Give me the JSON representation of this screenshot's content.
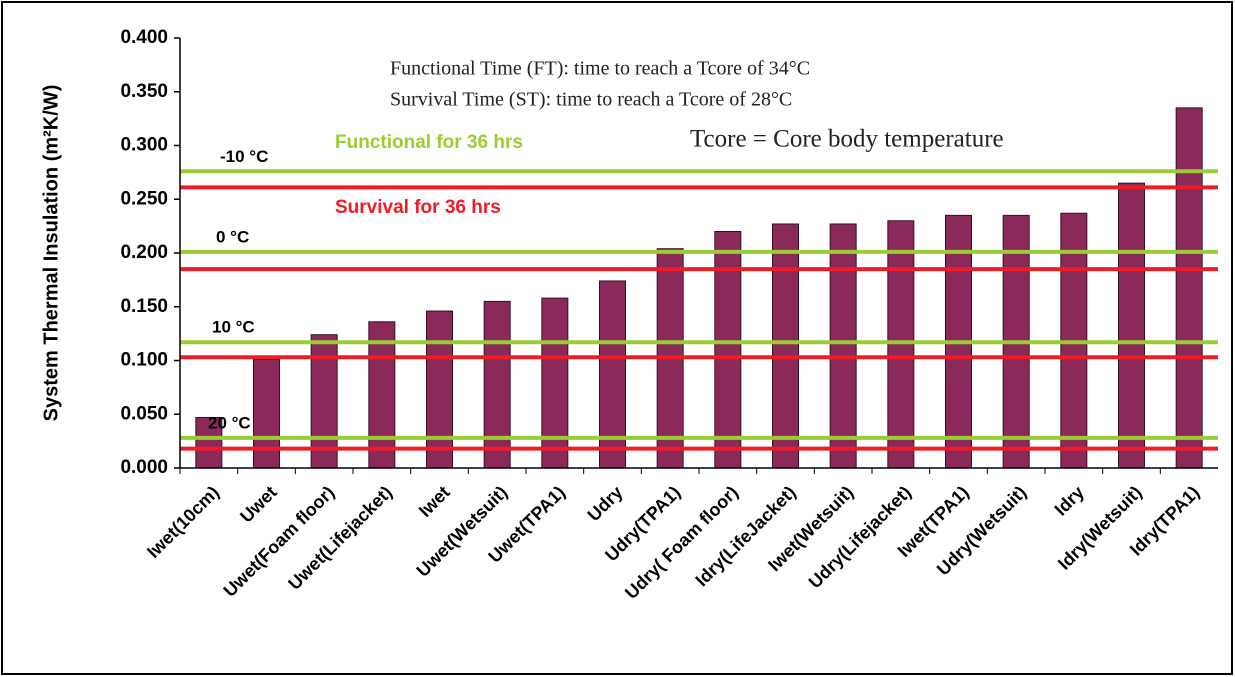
{
  "chart_data": {
    "type": "bar",
    "y_label": "System Thermal Insulation (m²K/W)",
    "categories": [
      "Iwet(10cm)",
      "Uwet",
      "Uwet(Foam floor)",
      "Uwet(Lifejacket)",
      "Iwet",
      "Uwet(Wetsuit)",
      "Uwet(TPA1)",
      "Udry",
      "Udry(TPA1)",
      "Udry( Foam floor)",
      "Idry(LifeJacket)",
      "Iwet(Wetsuit)",
      "Udry(Lifejacket)",
      "Iwet(TPA1)",
      "Udry(Wetsuit)",
      "Idry",
      "Idry(Wetsuit)",
      "Idry(TPA1)"
    ],
    "values": [
      0.047,
      0.101,
      0.124,
      0.136,
      0.146,
      0.155,
      0.158,
      0.174,
      0.204,
      0.22,
      0.227,
      0.227,
      0.23,
      0.235,
      0.235,
      0.237,
      0.265,
      0.335
    ],
    "color": "#8b2a5a",
    "ylim": [
      0,
      0.4
    ],
    "yticks": [
      {
        "value": 0,
        "label": "0.000"
      },
      {
        "value": 0.05,
        "label": "0.050"
      },
      {
        "value": 0.1,
        "label": "0.100"
      },
      {
        "value": 0.15,
        "label": "0.150"
      },
      {
        "value": 0.2,
        "label": "0.200"
      },
      {
        "value": 0.25,
        "label": "0.250"
      },
      {
        "value": 0.3,
        "label": "0.300"
      },
      {
        "value": 0.35,
        "label": "0.350"
      },
      {
        "value": 0.4,
        "label": "0.400"
      }
    ],
    "functional_label": "Functional for 36 hrs",
    "functional_color": "#9acd32",
    "survival_label": "Survival for 36 hrs",
    "survival_color": "#ee1c25",
    "thresholds": [
      {
        "temperature": "-10 °C",
        "functional": 0.276,
        "survival": 0.261
      },
      {
        "temperature": "0 °C",
        "functional": 0.201,
        "survival": 0.185
      },
      {
        "temperature": "10 °C",
        "functional": 0.117,
        "survival": 0.103
      },
      {
        "temperature": "20 °C",
        "functional": 0.028,
        "survival": 0.018
      }
    ],
    "annotations": [
      "Functional Time (FT): time to reach a Tcore of 34°C",
      "Survival Time (ST): time to reach a Tcore of 28°C",
      "Tcore = Core body temperature"
    ]
  }
}
